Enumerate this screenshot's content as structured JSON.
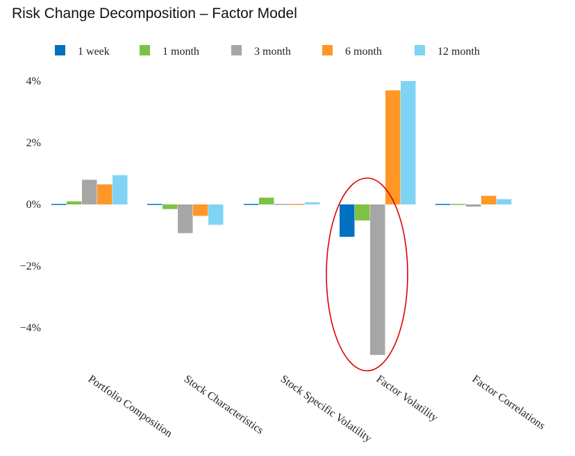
{
  "title": "Risk Change Decomposition – Factor Model",
  "chart_data": {
    "type": "bar",
    "categories": [
      "Portfolio Composition",
      "Stock Characteristics",
      "Stock Specific Volatility",
      "Factor Volatility",
      "Factor  Correlations"
    ],
    "series": [
      {
        "name": "1 week",
        "color": "#0070c0",
        "values": [
          -0.03,
          0.01,
          -0.03,
          -1.05,
          -0.03
        ]
      },
      {
        "name": "1 month",
        "color": "#7dc242",
        "values": [
          0.1,
          -0.15,
          0.22,
          -0.52,
          -0.02
        ]
      },
      {
        "name": "3 month",
        "color": "#a6a6a6",
        "values": [
          0.8,
          -0.93,
          0.03,
          -4.88,
          -0.07
        ]
      },
      {
        "name": "6 month",
        "color": "#ff9727",
        "values": [
          0.65,
          -0.37,
          0.01,
          3.7,
          0.28
        ]
      },
      {
        "name": "12 month",
        "color": "#7fd4f5",
        "values": [
          0.95,
          -0.66,
          0.07,
          4.0,
          0.17
        ]
      }
    ],
    "ylim": [
      -5,
      4
    ],
    "yticks": [
      4,
      2,
      0,
      -2,
      -4
    ],
    "ytick_labels": [
      "4%",
      "2%",
      "0%",
      "−2%",
      "−4%"
    ],
    "legend_position": "top",
    "grid": false,
    "annotation": {
      "type": "ellipse",
      "color": "#dd0000",
      "target_category": "Factor Volatility"
    }
  }
}
